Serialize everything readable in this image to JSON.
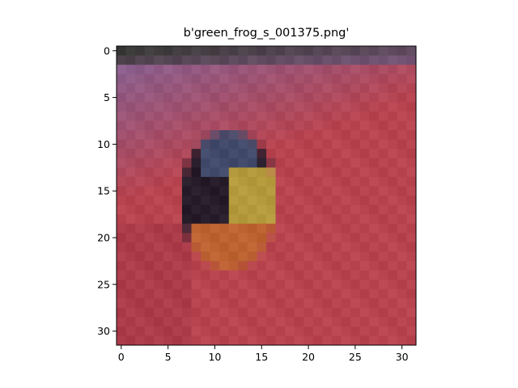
{
  "chart_data": {
    "type": "heatmap",
    "title": "b'green_frog_s_001375.png'",
    "xlabel": "",
    "ylabel": "",
    "xlim": [
      -0.5,
      31.5
    ],
    "ylim": [
      31.5,
      -0.5
    ],
    "xticks": [
      0,
      5,
      10,
      15,
      20,
      25,
      30
    ],
    "yticks": [
      0,
      5,
      10,
      15,
      20,
      25,
      30
    ],
    "grid": false,
    "image_size": [
      32,
      32
    ],
    "image_description_colors": {
      "top_band": "#3a3e3a",
      "purple": "#8a5a88",
      "pink_red": "#b8424e",
      "dark_frog": "#2a2030",
      "blue_spot": "#4a5a80",
      "yellow_green": "#b0983a",
      "orange_red": "#c03c28"
    }
  }
}
